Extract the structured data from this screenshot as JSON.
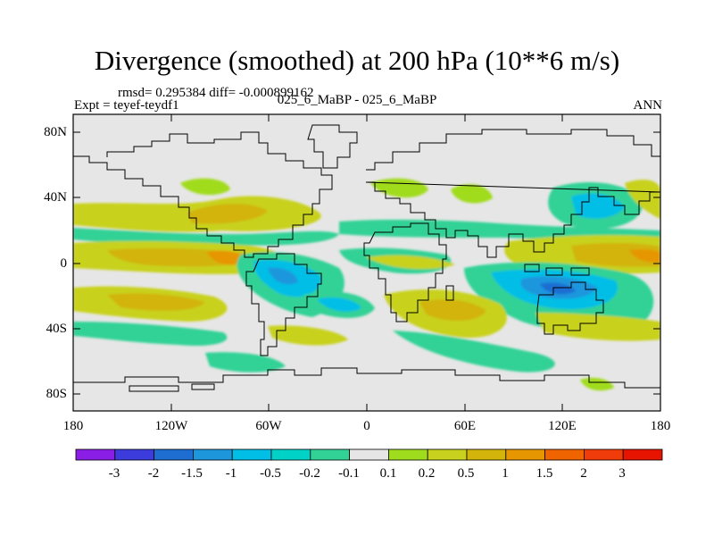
{
  "title": "Divergence (smoothed) at 200 hPa (10**6 m/s)",
  "stats": "rmsd= 0.295384 diff= -0.000899162",
  "experiment": "Expt = teyef-teydf1",
  "case_label": "025_6_MaBP - 025_6_MaBP",
  "season": "ANN",
  "axes": {
    "lat_ticks": [
      "80N",
      "40N",
      "0",
      "40S",
      "80S"
    ],
    "lat_values": [
      80,
      40,
      0,
      -40,
      -80
    ],
    "lon_ticks": [
      "180",
      "120W",
      "60W",
      "0",
      "60E",
      "120E",
      "180"
    ],
    "lon_values": [
      -180,
      -120,
      -60,
      0,
      60,
      120,
      180
    ]
  },
  "colorbar": {
    "labels": [
      "-3",
      "-2",
      "-1.5",
      "-1",
      "-0.5",
      "-0.2",
      "-0.1",
      "0.1",
      "0.2",
      "0.5",
      "1",
      "1.5",
      "2",
      "3"
    ],
    "colors": [
      "#8b1ee6",
      "#3c3cdc",
      "#1e6ed2",
      "#1e96dc",
      "#00bee6",
      "#00d2c8",
      "#32d296",
      "#e6e6e6",
      "#a0dc1e",
      "#c8d21e",
      "#d2b40a",
      "#e69600",
      "#f06400",
      "#f03c0a",
      "#e61400"
    ]
  }
}
